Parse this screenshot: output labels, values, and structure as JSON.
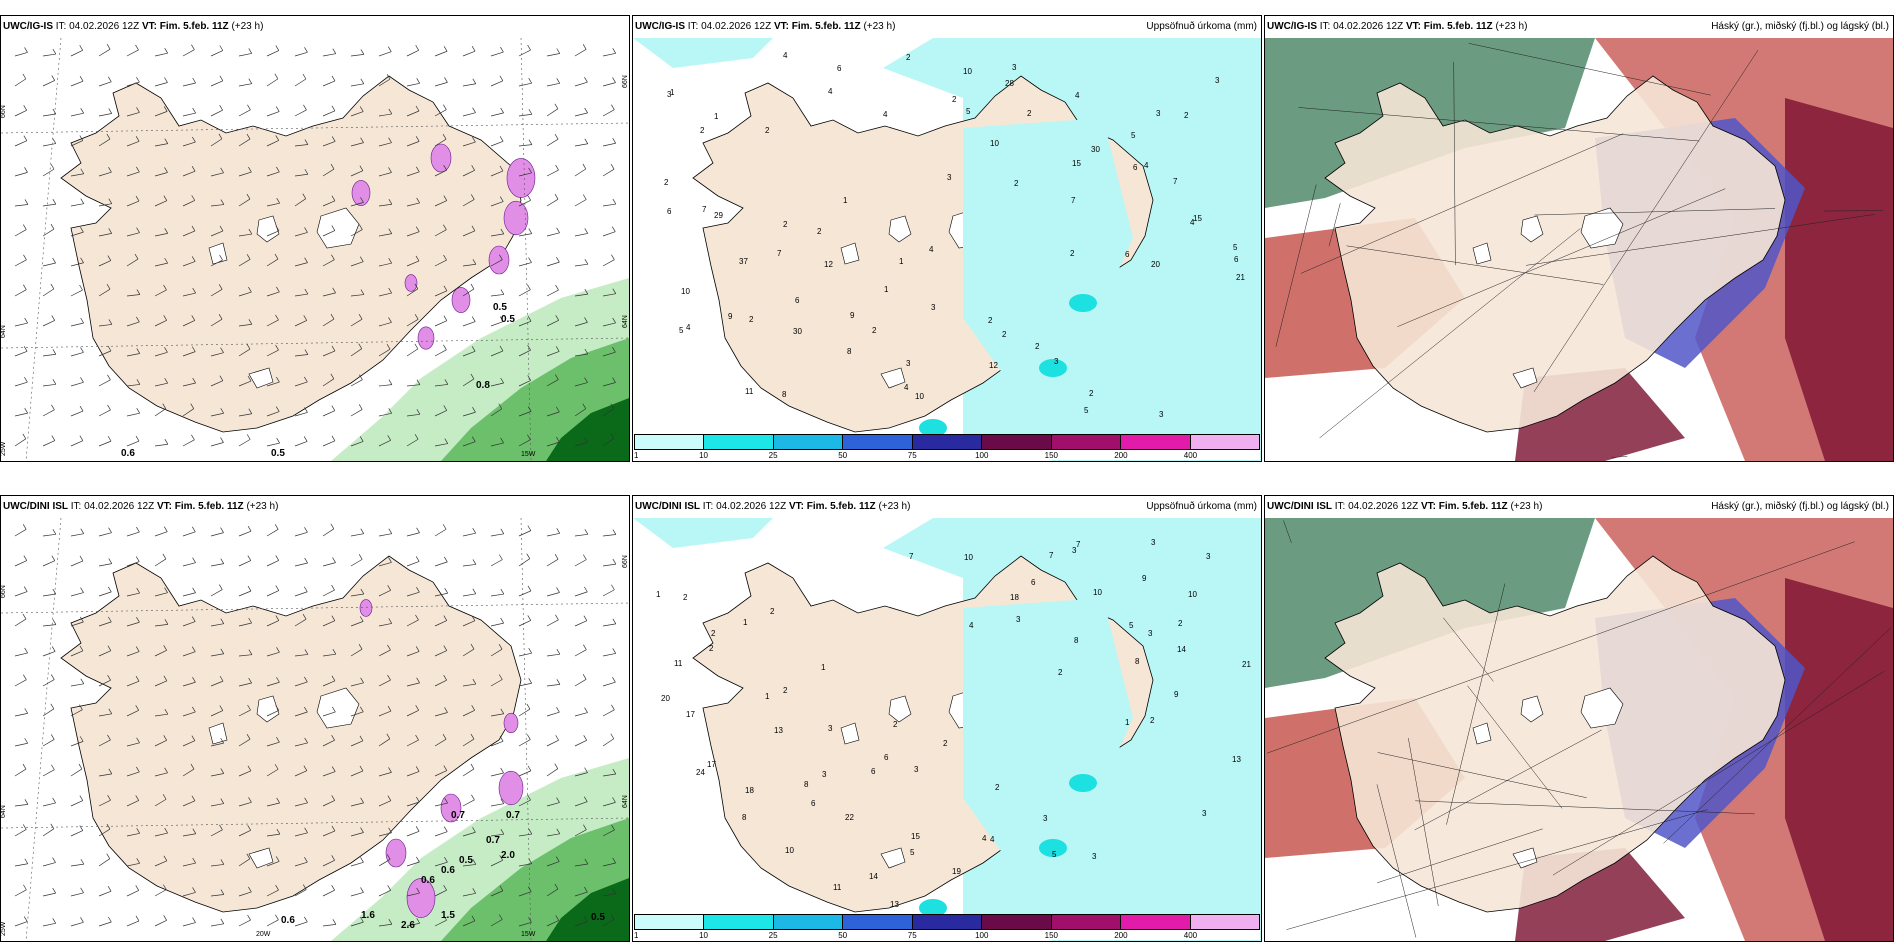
{
  "colors": {
    "land": "#f5e6d6",
    "sea": "#ffffff",
    "precip_light": "#b9f7f7",
    "cyan": "#1de0e0",
    "snow_pink": "#e08ee6",
    "rain_green_light": "#c6ecc6",
    "rain_green": "#6cc06c",
    "rain_green_dark": "#0a6a1a",
    "cloud_high": "#3a7a55",
    "cloud_mid": "#c0403a",
    "cloud_mid_dark": "#7a1030",
    "cloud_low": "#5056c8"
  },
  "legend_colors": [
    "#ccfbfb",
    "#1de6e6",
    "#1cb8e6",
    "#2e62d8",
    "#2a2aa0",
    "#6a0a48",
    "#a0106a",
    "#e01ca8",
    "#f0b0f0"
  ],
  "legend_ticks": [
    "1",
    "10",
    "25",
    "50",
    "75",
    "100",
    "150",
    "200",
    "400"
  ],
  "rows": [
    {
      "header": {
        "model": "UWC/IG-IS",
        "it_label": "IT:",
        "it_value": "04.02.2026 12Z",
        "vt_label": "VT:",
        "vt_value": "Fim. 5.feb. 11Z",
        "lead": "(+23 h)"
      },
      "precip_title": "Uppsöfnuð úrkoma (mm)",
      "cloud_title": "Háský (gr.), miðský (fj.bl.) og lágský (bl.)",
      "wind_labels": [
        "0.5",
        "0.5",
        "0.6",
        "0.5",
        "0.8"
      ],
      "axis_labels": [
        "66N",
        "64N",
        "25W",
        "15W",
        "66N",
        "64N"
      ],
      "precip_values": [
        "1",
        "1",
        "2",
        "1",
        "1",
        "4",
        "2",
        "2",
        "2",
        "3",
        "3",
        "3",
        "2",
        "2",
        "2",
        "1",
        "3",
        "2",
        "3",
        "5",
        "3",
        "2",
        "2",
        "7",
        "7",
        "12",
        "2",
        "3",
        "12",
        "3",
        "4",
        "5",
        "7",
        "6",
        "29",
        "37",
        "6",
        "9",
        "4",
        "10",
        "28",
        "30",
        "4",
        "4",
        "5",
        "10",
        "2",
        "30",
        "8",
        "10",
        "5",
        "2",
        "15",
        "6",
        "15",
        "6",
        "5",
        "9",
        "8",
        "6",
        "2",
        "2",
        "10",
        "7",
        "6",
        "20",
        "21",
        "4",
        "11",
        "4",
        "4",
        "4",
        "3",
        "2",
        "2"
      ]
    },
    {
      "header": {
        "model": "UWC/DINI ISL",
        "it_label": "IT:",
        "it_value": "04.02.2026 12Z",
        "vt_label": "VT:",
        "vt_value": "Fim. 5.feb. 11Z",
        "lead": "(+23 h)"
      },
      "precip_title": "Uppsöfnuð úrkoma (mm)",
      "cloud_title": "Háský (gr.), miðský (fj.bl.) og lágský (bl.)",
      "wind_labels": [
        "0.7",
        "0.7",
        "0.7",
        "0.6",
        "0.6",
        "0.5",
        "2.0",
        "0.6",
        "1.6",
        "2.6",
        "1.5",
        "0.5"
      ],
      "axis_labels": [
        "66N",
        "64N",
        "25W",
        "20W",
        "15W",
        "66N",
        "64N"
      ],
      "precip_values": [
        "1",
        "1",
        "2",
        "1",
        "2",
        "2",
        "2",
        "3",
        "3",
        "3",
        "3",
        "2",
        "2",
        "1",
        "3",
        "6",
        "3",
        "4",
        "5",
        "7",
        "9",
        "10",
        "11",
        "2",
        "2",
        "3",
        "6",
        "5",
        "4",
        "7",
        "3",
        "5",
        "2",
        "21",
        "17",
        "13",
        "8",
        "22",
        "15",
        "19",
        "6",
        "10",
        "3",
        "14",
        "20",
        "24",
        "18",
        "6",
        "14",
        "13",
        "10",
        "18",
        "8",
        "8",
        "9",
        "13",
        "17",
        "8",
        "10",
        "11",
        "7",
        "4",
        "3",
        "2",
        "1",
        "2",
        "3"
      ]
    }
  ]
}
